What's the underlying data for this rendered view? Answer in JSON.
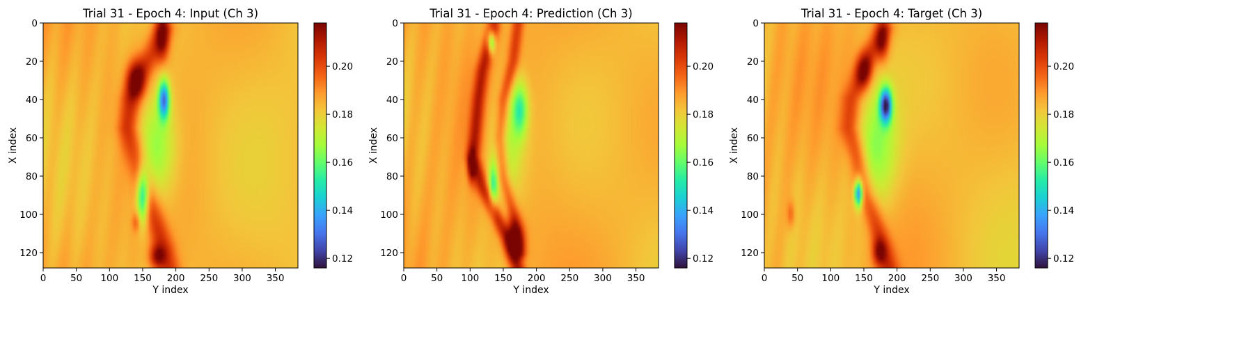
{
  "figure": {
    "background": "#ffffff",
    "colormap": "turbo",
    "colormap_stops": [
      "#30123b",
      "#4145ab",
      "#4675ed",
      "#39a2fc",
      "#1bcfd4",
      "#24eca6",
      "#61fc6c",
      "#a4fc3b",
      "#d1e834",
      "#f3c63a",
      "#fe9b2d",
      "#f36315",
      "#d93806",
      "#b11901",
      "#7a0402"
    ]
  },
  "chart_data": [
    {
      "type": "heatmap",
      "title": "Trial 31 - Epoch 4: Input (Ch 3)",
      "xlabel": "Y index",
      "ylabel": "X index",
      "xlim": [
        0,
        384
      ],
      "ylim": [
        128,
        0
      ],
      "x_ticks": [
        0,
        50,
        100,
        150,
        200,
        250,
        300,
        350
      ],
      "y_ticks": [
        0,
        20,
        40,
        60,
        80,
        100,
        120
      ],
      "colorbar": {
        "range": [
          0.116,
          0.218
        ],
        "ticks": [
          0.12,
          0.14,
          0.16,
          0.18,
          0.2
        ],
        "tick_labels": [
          "0.12",
          "0.14",
          "0.16",
          "0.18",
          "0.20"
        ]
      },
      "background_value": 0.185,
      "features": [
        {
          "kind": "ridge",
          "points": [
            [
              3,
              180
            ],
            [
              15,
              165
            ],
            [
              28,
              145
            ],
            [
              40,
              132
            ],
            [
              55,
              128
            ],
            [
              70,
              140
            ],
            [
              90,
              155
            ],
            [
              105,
              170
            ],
            [
              118,
              183
            ],
            [
              128,
              190
            ]
          ],
          "width": 16,
          "value": 0.207
        },
        {
          "kind": "blob",
          "center": [
            30,
            140
          ],
          "radius": [
            10,
            14
          ],
          "value": 0.212
        },
        {
          "kind": "blob",
          "center": [
            8,
            180
          ],
          "radius": [
            12,
            10
          ],
          "value": 0.21
        },
        {
          "kind": "blob",
          "center": [
            40,
            182
          ],
          "radius": [
            10,
            8
          ],
          "value": 0.135
        },
        {
          "kind": "blob",
          "center": [
            90,
            150
          ],
          "radius": [
            14,
            9
          ],
          "value": 0.14
        },
        {
          "kind": "blob",
          "center": [
            65,
            170
          ],
          "radius": [
            28,
            30
          ],
          "value": 0.162
        },
        {
          "kind": "blob",
          "center": [
            122,
            172
          ],
          "radius": [
            6,
            12
          ],
          "value": 0.21
        },
        {
          "kind": "blob",
          "center": [
            104,
            140
          ],
          "radius": [
            5,
            6
          ],
          "value": 0.198
        }
      ]
    },
    {
      "type": "heatmap",
      "title": "Trial 31 - Epoch 4: Prediction (Ch 3)",
      "xlabel": "Y index",
      "ylabel": "X index",
      "xlim": [
        0,
        384
      ],
      "ylim": [
        128,
        0
      ],
      "x_ticks": [
        0,
        50,
        100,
        150,
        200,
        250,
        300,
        350
      ],
      "y_ticks": [
        0,
        20,
        40,
        60,
        80,
        100,
        120
      ],
      "colorbar": {
        "range": [
          0.116,
          0.218
        ],
        "ticks": [
          0.12,
          0.14,
          0.16,
          0.18,
          0.2
        ],
        "tick_labels": [
          "0.12",
          "0.14",
          "0.16",
          "0.18",
          "0.20"
        ]
      },
      "background_value": 0.186,
      "features": [
        {
          "kind": "ridge",
          "points": [
            [
              2,
              135
            ],
            [
              12,
              128
            ],
            [
              25,
              118
            ],
            [
              40,
              112
            ],
            [
              55,
              108
            ],
            [
              70,
              104
            ],
            [
              85,
              118
            ],
            [
              100,
              138
            ],
            [
              112,
              155
            ],
            [
              128,
              172
            ]
          ],
          "width": 10,
          "value": 0.212
        },
        {
          "kind": "ridge",
          "points": [
            [
              0,
              172
            ],
            [
              20,
              165
            ],
            [
              40,
              150
            ],
            [
              60,
              145
            ],
            [
              80,
              150
            ],
            [
              100,
              165
            ],
            [
              120,
              175
            ]
          ],
          "width": 9,
          "value": 0.205
        },
        {
          "kind": "blob",
          "center": [
            10,
            132
          ],
          "radius": [
            6,
            6
          ],
          "value": 0.145
        },
        {
          "kind": "blob",
          "center": [
            45,
            175
          ],
          "radius": [
            14,
            12
          ],
          "value": 0.158
        },
        {
          "kind": "blob",
          "center": [
            85,
            135
          ],
          "radius": [
            12,
            7
          ],
          "value": 0.158
        },
        {
          "kind": "blob",
          "center": [
            113,
            168
          ],
          "radius": [
            10,
            14
          ],
          "value": 0.216
        },
        {
          "kind": "blob",
          "center": [
            75,
            102
          ],
          "radius": [
            8,
            6
          ],
          "value": 0.214
        },
        {
          "kind": "blob",
          "center": [
            64,
            155
          ],
          "radius": [
            30,
            28
          ],
          "value": 0.168
        }
      ]
    },
    {
      "type": "heatmap",
      "title": "Trial 31 - Epoch 4: Target (Ch 3)",
      "xlabel": "Y index",
      "ylabel": "X index",
      "xlim": [
        0,
        384
      ],
      "ylim": [
        128,
        0
      ],
      "x_ticks": [
        0,
        50,
        100,
        150,
        200,
        250,
        300,
        350
      ],
      "y_ticks": [
        0,
        20,
        40,
        60,
        80,
        100,
        120
      ],
      "colorbar": {
        "range": [
          0.116,
          0.218
        ],
        "ticks": [
          0.12,
          0.14,
          0.16,
          0.18,
          0.2
        ],
        "tick_labels": [
          "0.12",
          "0.14",
          "0.16",
          "0.18",
          "0.20"
        ]
      },
      "background_value": 0.185,
      "features": [
        {
          "kind": "ridge",
          "points": [
            [
              3,
              180
            ],
            [
              15,
              162
            ],
            [
              28,
              145
            ],
            [
              40,
              132
            ],
            [
              55,
              128
            ],
            [
              70,
              140
            ],
            [
              90,
              152
            ],
            [
              105,
              168
            ],
            [
              118,
              180
            ],
            [
              128,
              188
            ]
          ],
          "width": 14,
          "value": 0.205
        },
        {
          "kind": "blob",
          "center": [
            25,
            150
          ],
          "radius": [
            9,
            12
          ],
          "value": 0.21
        },
        {
          "kind": "blob",
          "center": [
            10,
            178
          ],
          "radius": [
            10,
            10
          ],
          "value": 0.21
        },
        {
          "kind": "blob",
          "center": [
            43,
            183
          ],
          "radius": [
            9,
            9
          ],
          "value": 0.125
        },
        {
          "kind": "blob",
          "center": [
            89,
            142
          ],
          "radius": [
            7,
            6
          ],
          "value": 0.13
        },
        {
          "kind": "blob",
          "center": [
            65,
            170
          ],
          "radius": [
            30,
            30
          ],
          "value": 0.165
        },
        {
          "kind": "blob",
          "center": [
            120,
            173
          ],
          "radius": [
            7,
            10
          ],
          "value": 0.208
        },
        {
          "kind": "blob",
          "center": [
            100,
            40
          ],
          "radius": [
            7,
            6
          ],
          "value": 0.198
        }
      ]
    }
  ]
}
